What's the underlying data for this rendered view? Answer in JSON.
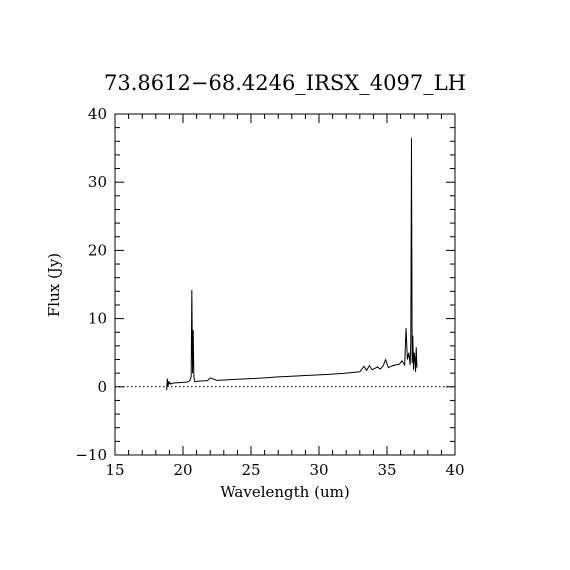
{
  "chart_data": {
    "type": "line",
    "title": "73.8612−68.4246_IRSX_4097_LH",
    "xlabel": "Wavelength (um)",
    "ylabel": "Flux (Jy)",
    "xlim": [
      15,
      40
    ],
    "ylim": [
      -10,
      40
    ],
    "x_ticks": [
      15,
      20,
      25,
      30,
      35,
      40
    ],
    "y_ticks": [
      -10,
      0,
      10,
      20,
      30,
      40
    ],
    "x_tick_labels": [
      "15",
      "20",
      "25",
      "30",
      "35",
      "40"
    ],
    "y_tick_labels": [
      "−10",
      "0",
      "10",
      "20",
      "30",
      "40"
    ],
    "zero_line": {
      "y": 0,
      "style": "dotted"
    },
    "grid": false,
    "series": [
      {
        "x": [
          18.8,
          18.85,
          18.9,
          18.95,
          19.0,
          19.05,
          19.1,
          19.3,
          19.6,
          20.0,
          20.3,
          20.5,
          20.6,
          20.65,
          20.7,
          20.75,
          20.8,
          20.85,
          20.9,
          21.0,
          21.3,
          21.8,
          22.0,
          22.5,
          23.0,
          24.0,
          25.0,
          26.0,
          27.0,
          28.0,
          29.0,
          30.0,
          31.0,
          32.0,
          33.0,
          33.3,
          33.5,
          33.7,
          33.9,
          34.1,
          34.3,
          34.5,
          34.7,
          34.9,
          35.1,
          35.3,
          35.6,
          35.9,
          36.1,
          36.3,
          36.4,
          36.5,
          36.6,
          36.7,
          36.75,
          36.8,
          36.85,
          36.9,
          36.95,
          37.0,
          37.05,
          37.1,
          37.15,
          37.2
        ],
        "y": [
          -0.5,
          1.2,
          0.0,
          0.8,
          0.5,
          0.6,
          0.4,
          0.55,
          0.6,
          0.65,
          0.7,
          0.9,
          1.5,
          14.2,
          2.0,
          8.3,
          1.5,
          0.8,
          0.75,
          0.8,
          0.85,
          0.9,
          1.3,
          0.95,
          1.0,
          1.1,
          1.2,
          1.3,
          1.45,
          1.55,
          1.65,
          1.75,
          1.85,
          2.0,
          2.2,
          3.0,
          2.4,
          3.1,
          2.5,
          2.7,
          2.9,
          2.6,
          3.0,
          4.0,
          2.8,
          3.0,
          3.2,
          3.3,
          3.8,
          3.2,
          8.6,
          4.0,
          5.0,
          3.2,
          6.5,
          36.5,
          3.5,
          7.5,
          2.5,
          5.0,
          4.2,
          2.2,
          5.8,
          2.8
        ]
      }
    ]
  }
}
